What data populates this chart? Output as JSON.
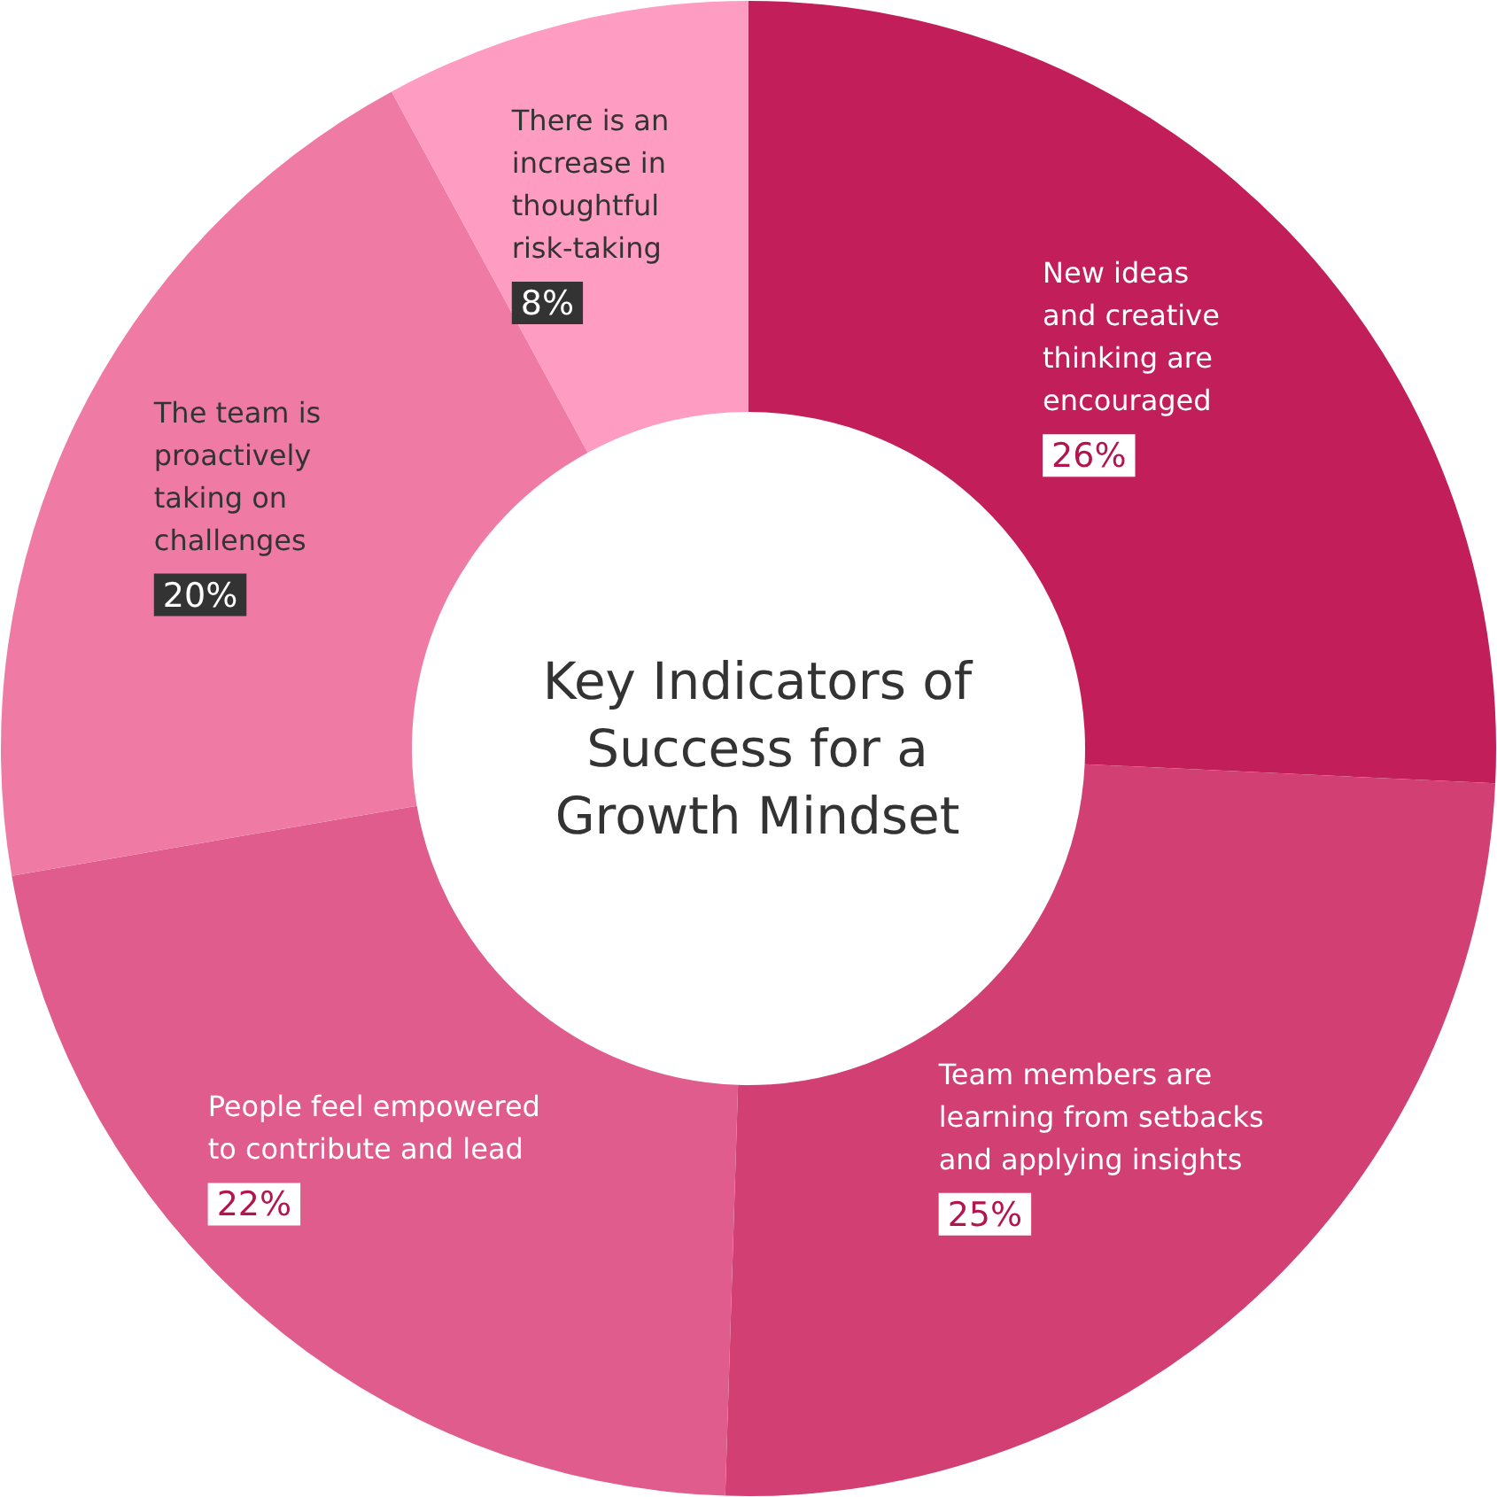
{
  "chart_data": {
    "type": "donut",
    "title": "Key Indicators of Success for a Growth Mindset",
    "categories": [
      "New ideas and creative thinking are encouraged",
      "Team members are learning from setbacks and applying insights",
      "People feel empowered to contribute and lead",
      "The team is proactively taking on challenges",
      "There is an increase in thoughtful risk-taking"
    ],
    "values": [
      26,
      25,
      22,
      20,
      8
    ],
    "value_labels": [
      "26%",
      "25%",
      "22%",
      "20%",
      "8%"
    ],
    "colors": [
      "#c21e5a",
      "#d13f73",
      "#e05c8c",
      "#ef7ba5",
      "#fe9cc2"
    ]
  }
}
